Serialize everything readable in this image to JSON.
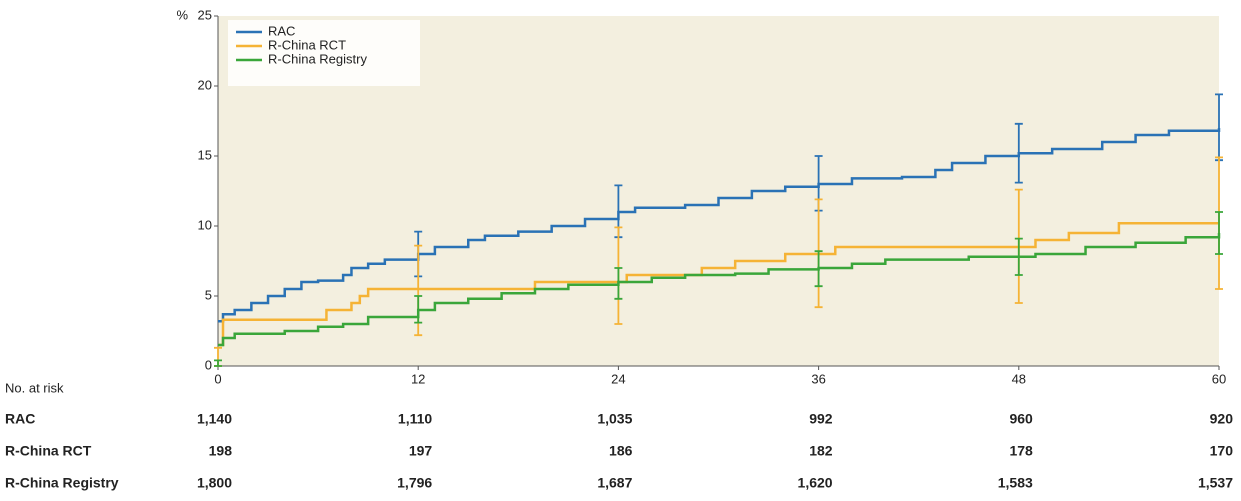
{
  "chart_data": {
    "type": "step",
    "y_label": "%",
    "xlim": [
      0,
      60
    ],
    "xticks": [
      0,
      12,
      24,
      36,
      48,
      60
    ],
    "ylim": [
      0,
      25
    ],
    "yticks": [
      0,
      5,
      10,
      15,
      20,
      25
    ],
    "background": "#f3efdf",
    "legend_position": "upper-left",
    "series": [
      {
        "name": "RAC",
        "color": "#2a72b5",
        "x": [
          0,
          0.3,
          1,
          2,
          3,
          4,
          5,
          6,
          7.5,
          8,
          9,
          10,
          12,
          13,
          15,
          16,
          18,
          20,
          22,
          24,
          25,
          28,
          30,
          32,
          34,
          36,
          38,
          41,
          43,
          44,
          46,
          48,
          50,
          53,
          55,
          57,
          60
        ],
        "values": [
          3.2,
          3.7,
          4,
          4.5,
          5,
          5.5,
          6,
          6.1,
          6.5,
          7,
          7.3,
          7.6,
          8,
          8.5,
          9,
          9.3,
          9.6,
          10,
          10.5,
          11,
          11.3,
          11.5,
          12,
          12.5,
          12.8,
          13,
          13.4,
          13.5,
          14,
          14.5,
          15,
          15.2,
          15.5,
          16,
          16.5,
          16.8,
          17
        ],
        "errors": [
          {
            "x": 12,
            "low": 6.4,
            "high": 9.6
          },
          {
            "x": 24,
            "low": 9.2,
            "high": 12.9
          },
          {
            "x": 36,
            "low": 11.1,
            "high": 15
          },
          {
            "x": 48,
            "low": 13.1,
            "high": 17.3
          },
          {
            "x": 60,
            "low": 14.7,
            "high": 19.4
          }
        ]
      },
      {
        "name": "R-China RCT",
        "color": "#f5b335",
        "x": [
          0,
          0.3,
          6.5,
          8,
          8.5,
          9,
          19,
          24.5,
          29,
          31,
          34,
          37,
          49,
          51,
          54,
          60
        ],
        "values": [
          1.5,
          3.3,
          4,
          4.5,
          5,
          5.5,
          6,
          6.5,
          7,
          7.5,
          8,
          8.5,
          9,
          9.5,
          10.2,
          10.2
        ],
        "errors": [
          {
            "x": 0,
            "low": 0,
            "high": 1.3
          },
          {
            "x": 12,
            "low": 2.2,
            "high": 8.6
          },
          {
            "x": 24,
            "low": 3,
            "high": 9.9
          },
          {
            "x": 36,
            "low": 4.2,
            "high": 11.9
          },
          {
            "x": 48,
            "low": 4.5,
            "high": 12.6
          },
          {
            "x": 60,
            "low": 5.5,
            "high": 14.9
          }
        ]
      },
      {
        "name": "R-China Registry",
        "color": "#3aa63a",
        "x": [
          0,
          0.3,
          1,
          4,
          6,
          7.5,
          9,
          12,
          13,
          15,
          17,
          19,
          21,
          24,
          26,
          28,
          31,
          33,
          36,
          38,
          40,
          45,
          49,
          52,
          55,
          58,
          60
        ],
        "values": [
          1.5,
          2,
          2.3,
          2.5,
          2.8,
          3,
          3.5,
          4,
          4.5,
          4.8,
          5.2,
          5.5,
          5.8,
          6,
          6.3,
          6.5,
          6.6,
          6.9,
          7,
          7.3,
          7.6,
          7.8,
          8,
          8.5,
          8.8,
          9.2,
          9.5
        ],
        "errors": [
          {
            "x": 0,
            "low": 0,
            "high": 0.4
          },
          {
            "x": 12,
            "low": 3.1,
            "high": 5
          },
          {
            "x": 24,
            "low": 4.8,
            "high": 7
          },
          {
            "x": 36,
            "low": 5.7,
            "high": 8.2
          },
          {
            "x": 48,
            "low": 6.5,
            "high": 9.1
          },
          {
            "x": 60,
            "low": 8,
            "high": 11
          }
        ]
      }
    ]
  },
  "risk_table": {
    "title": "No. at risk",
    "rows": [
      {
        "label": "RAC",
        "values": [
          "1,140",
          "1,110",
          "1,035",
          "992",
          "960",
          "920"
        ]
      },
      {
        "label": "R-China RCT",
        "values": [
          "198",
          "197",
          "186",
          "182",
          "178",
          "170"
        ]
      },
      {
        "label": "R-China Registry",
        "values": [
          "1,800",
          "1,796",
          "1,687",
          "1,620",
          "1,583",
          "1,537"
        ]
      }
    ]
  }
}
